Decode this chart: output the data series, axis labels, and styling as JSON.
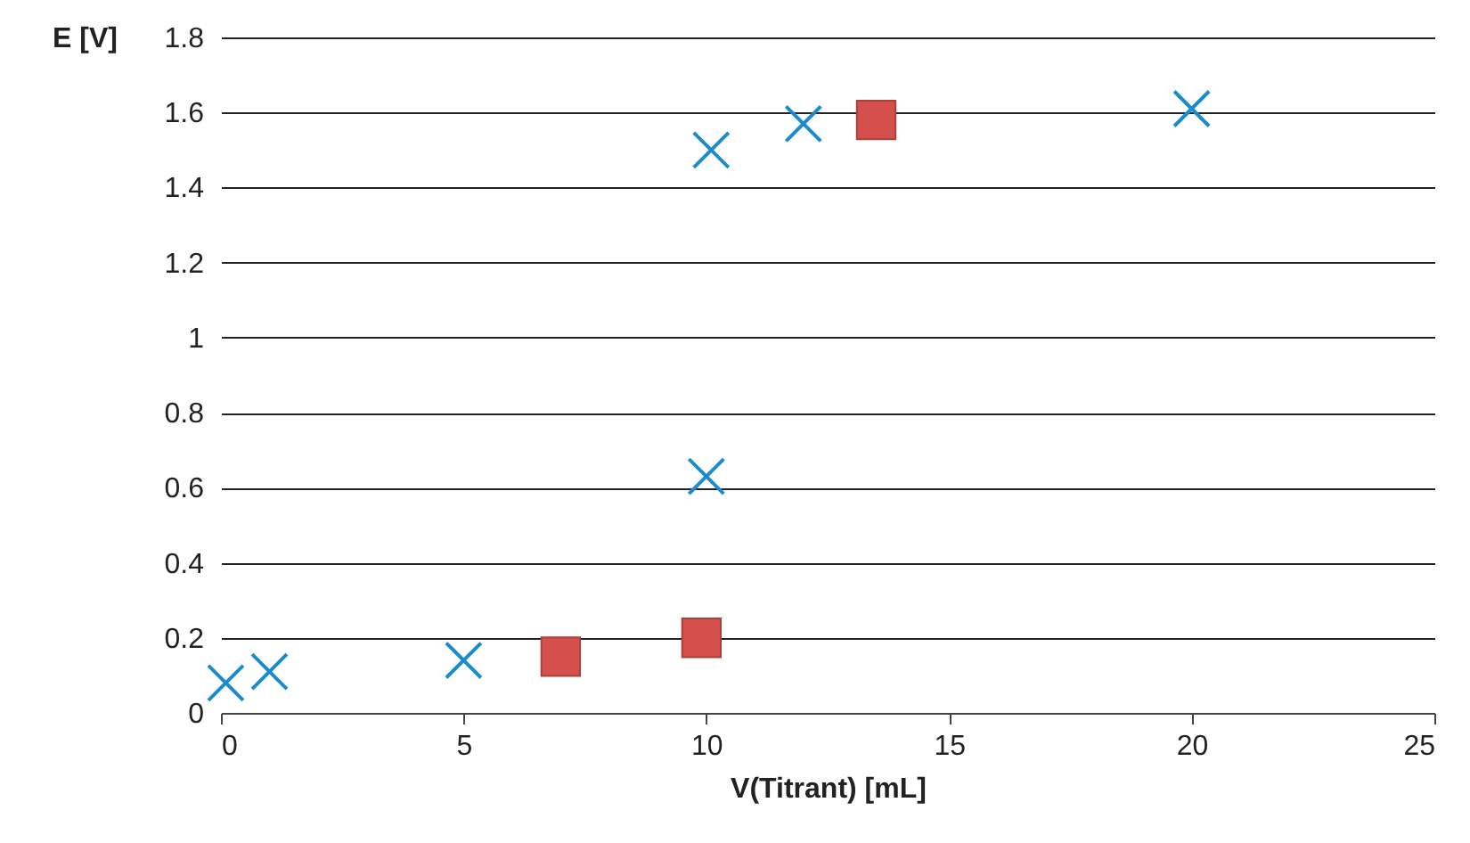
{
  "chart_data": {
    "type": "scatter",
    "xlabel": "V(Titrant) [mL]",
    "ylabel": "E [V]",
    "xlim": [
      0,
      25
    ],
    "xticks": [
      0,
      5,
      10,
      15,
      20,
      25
    ],
    "ylim": [
      0,
      1.8
    ],
    "yticks": [
      0,
      0.2,
      0.4,
      0.6,
      0.8,
      1,
      1.2,
      1.4,
      1.6,
      1.8
    ],
    "grid": "y",
    "series": [
      {
        "color": "#1a8ccc",
        "marker": "cross",
        "x": [
          0.1,
          1,
          5,
          10,
          10.1,
          12,
          20
        ],
        "values": [
          0.08,
          0.11,
          0.14,
          0.63,
          1.5,
          1.57,
          1.61
        ]
      },
      {
        "color": "#d5504c",
        "marker": "square",
        "x": [
          7,
          9.9,
          13.5
        ],
        "values": [
          0.15,
          0.2,
          1.58
        ]
      }
    ]
  }
}
